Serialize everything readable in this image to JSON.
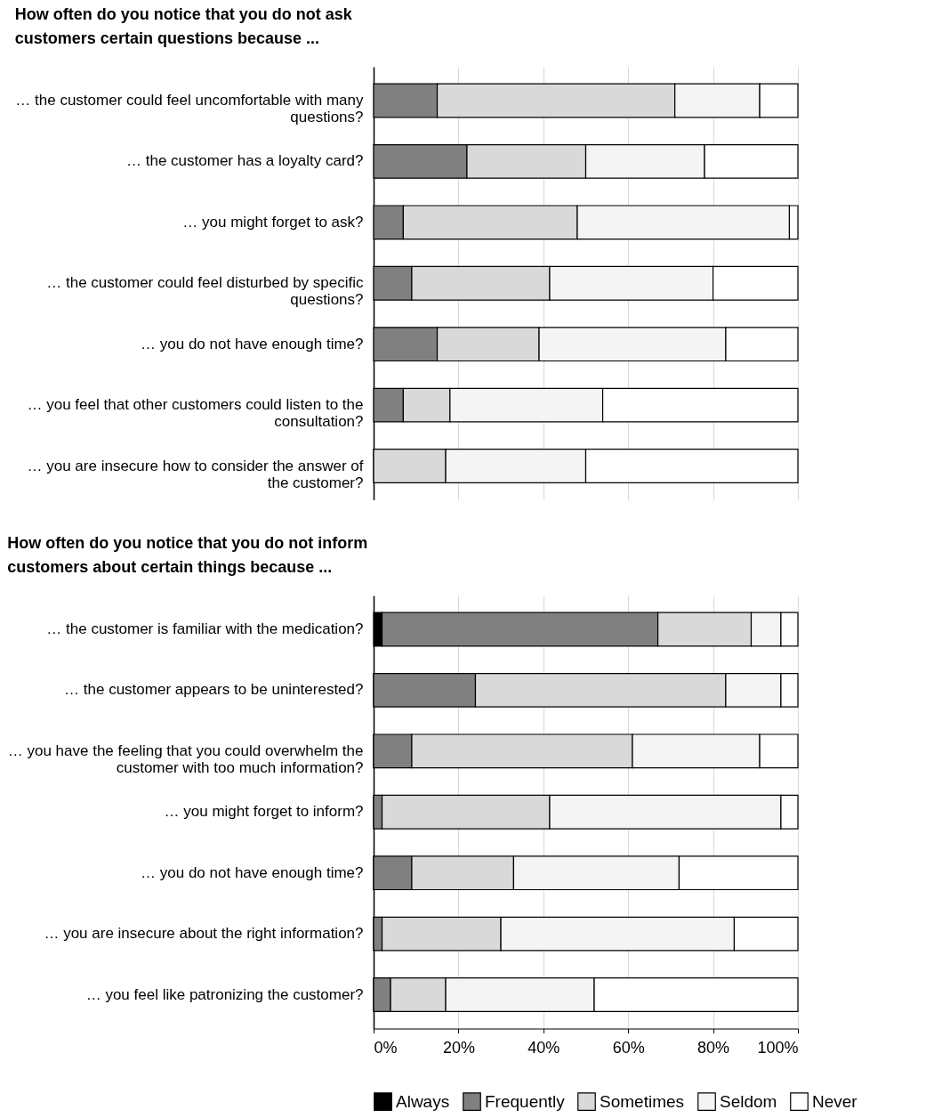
{
  "chart_data": [
    {
      "type": "bar",
      "orientation": "horizontal",
      "stacked": true,
      "title": "How often do you notice that you do not ask customers certain questions because ...",
      "categories": [
        "… the customer could feel uncomfortable with many questions?",
        "… the customer has a loyalty card?",
        "… you might forget to ask?",
        "… the customer could feel disturbed by specific questions?",
        "… you do not have enough time?",
        "… you feel that other customers could listen to the consultation?",
        "… you are insecure how to consider the answer of the customer?"
      ],
      "series": [
        {
          "color": "#808080",
          "values": [
            15,
            22,
            7,
            9,
            15,
            7,
            0
          ]
        },
        {
          "color": "#d9d9d9",
          "values": [
            56,
            28,
            41,
            32.5,
            24,
            11,
            17
          ]
        },
        {
          "color": "#f4f4f4",
          "values": [
            20,
            28,
            50,
            38.5,
            44,
            36,
            33
          ]
        },
        {
          "color": "#ffffff",
          "values": [
            9,
            22,
            2,
            20,
            17,
            46,
            50
          ]
        }
      ],
      "xlim": [
        0,
        100
      ],
      "xticks": [
        0,
        20,
        40,
        60,
        80,
        100
      ],
      "grid": "x",
      "tick_labels": "y"
    },
    {
      "type": "bar",
      "orientation": "horizontal",
      "stacked": true,
      "title": "How often do you notice that you do not inform customers about certain things because ...",
      "categories": [
        "… the customer is familiar with the medication?",
        "… the customer appears to be uninterested?",
        "… you have the feeling that you could overwhelm the customer with too much information?",
        "… you might forget to inform?",
        "… you do not have enough time?",
        "… you are insecure about the right information?",
        "… you feel like patronizing the customer?"
      ],
      "series": [
        {
          "name": "Always",
          "color": "#000000",
          "values": [
            2,
            0,
            0,
            0,
            0,
            0,
            0
          ]
        },
        {
          "name": "Frequently",
          "color": "#808080",
          "values": [
            65,
            24,
            9,
            2,
            9,
            2,
            4
          ]
        },
        {
          "name": "Sometimes",
          "color": "#d9d9d9",
          "values": [
            22,
            59,
            52,
            39.5,
            24,
            28,
            13
          ]
        },
        {
          "name": "Seldom",
          "color": "#f4f4f4",
          "values": [
            7,
            13,
            30,
            54.5,
            39,
            55,
            35
          ]
        },
        {
          "name": "Never",
          "color": "#ffffff",
          "values": [
            4,
            4,
            9,
            4,
            28,
            15,
            48
          ]
        }
      ],
      "xlim": [
        0,
        100
      ],
      "xticks": [
        {
          "value": 0,
          "label": "0%"
        },
        {
          "value": 20,
          "label": "20%"
        },
        {
          "value": 40,
          "label": "40%"
        },
        {
          "value": 60,
          "label": "60%"
        },
        {
          "value": 80,
          "label": "80%"
        },
        {
          "value": 100,
          "label": "100%"
        }
      ],
      "grid": "x",
      "legend": "bottom"
    }
  ]
}
